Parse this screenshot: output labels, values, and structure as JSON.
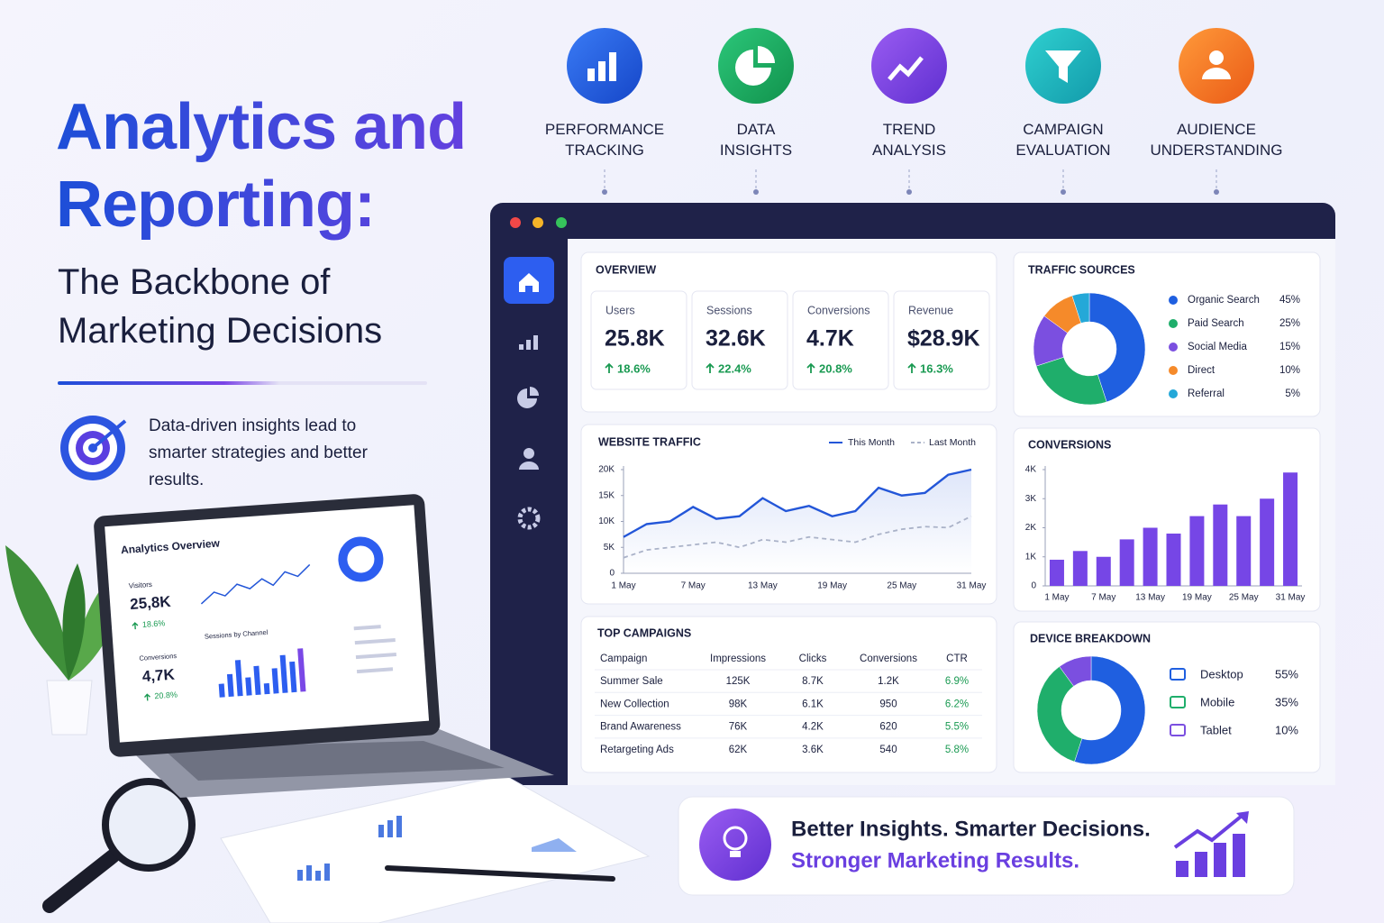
{
  "header": {
    "title": "Analytics and Reporting:",
    "subtitle": "The Backbone of Marketing Decisions",
    "tagline": "Data-driven insights lead to smarter strategies and better results."
  },
  "features": [
    "PERFORMANCE TRACKING",
    "DATA INSIGHTS",
    "TREND ANALYSIS",
    "CAMPAIGN EVALUATION",
    "AUDIENCE UNDERSTANDING"
  ],
  "laptop": {
    "title": "Analytics Overview",
    "visitors_label": "Visitors",
    "visitors": "25,8K",
    "visitors_change": "18.6%",
    "channel_label": "Sessions by Channel",
    "conversions_label": "Conversions",
    "conversions": "4,7K",
    "conversions_change": "20.8%"
  },
  "overview": {
    "title": "OVERVIEW",
    "kpis": [
      {
        "label": "Users",
        "value": "25.8K",
        "change": "18.6%"
      },
      {
        "label": "Sessions",
        "value": "32.6K",
        "change": "22.4%"
      },
      {
        "label": "Conversions",
        "value": "4.7K",
        "change": "20.8%"
      },
      {
        "label": "Revenue",
        "value": "$28.9K",
        "change": "16.3%"
      }
    ]
  },
  "table": {
    "title": "TOP CAMPAIGNS",
    "columns": [
      "Campaign",
      "Impressions",
      "Clicks",
      "Conversions",
      "CTR"
    ],
    "rows": [
      [
        "Summer Sale",
        "125K",
        "8.7K",
        "1.2K",
        "6.9%"
      ],
      [
        "New Collection",
        "98K",
        "6.1K",
        "950",
        "6.2%"
      ],
      [
        "Brand Awareness",
        "76K",
        "4.2K",
        "620",
        "5.5%"
      ],
      [
        "Retargeting Ads",
        "62K",
        "3.6K",
        "540",
        "5.8%"
      ]
    ]
  },
  "chart_data": [
    {
      "type": "pie",
      "title": "TRAFFIC SOURCES",
      "donut": true,
      "categories": [
        "Organic Search",
        "Paid Search",
        "Social Media",
        "Direct",
        "Referral"
      ],
      "values": [
        45,
        25,
        15,
        10,
        5
      ],
      "value_labels": [
        "45%",
        "25%",
        "15%",
        "10%",
        "5%"
      ],
      "colors": [
        "#1f5fe0",
        "#1fae6b",
        "#7b4fe0",
        "#f58a2a",
        "#24a8d8"
      ]
    },
    {
      "type": "line",
      "title": "WEBSITE TRAFFIC",
      "categories": [
        "1 May",
        null,
        null,
        "7 May",
        null,
        null,
        "13 May",
        null,
        null,
        "19 May",
        null,
        null,
        "25 May",
        null,
        null,
        "31 May"
      ],
      "series": [
        {
          "name": "This Month",
          "color": "#2356d8",
          "values": [
            7000,
            9500,
            10000,
            12800,
            10500,
            11000,
            14500,
            12000,
            13000,
            11000,
            12000,
            16500,
            15000,
            15500,
            19000,
            20000
          ]
        },
        {
          "name": "Last Month",
          "color": "#aab2c8",
          "dashed": true,
          "values": [
            3000,
            4500,
            5000,
            5500,
            6000,
            5000,
            6500,
            6000,
            7000,
            6500,
            6000,
            7500,
            8500,
            9000,
            8800,
            11000
          ]
        }
      ],
      "ylim": [
        0,
        20000
      ],
      "yticks": [
        0,
        {
          "value": 5000,
          "label": "5K"
        },
        {
          "value": 10000,
          "label": "10K"
        },
        {
          "value": 15000,
          "label": "15K"
        },
        {
          "value": 20000,
          "label": "20K"
        }
      ],
      "grid": false
    },
    {
      "type": "bar",
      "title": "CONVERSIONS",
      "categories": [
        "1 May",
        null,
        "7 May",
        null,
        "13 May",
        null,
        "19 May",
        null,
        "25 May",
        null,
        "31 May"
      ],
      "values": [
        900,
        1200,
        1000,
        1600,
        2000,
        1800,
        2400,
        2800,
        2400,
        3000,
        3900
      ],
      "color": "#7646e6",
      "ylim": [
        0,
        4000
      ],
      "yticks": [
        0,
        {
          "value": 1000,
          "label": "1K"
        },
        {
          "value": 2000,
          "label": "2K"
        },
        {
          "value": 3000,
          "label": "3K"
        },
        {
          "value": 4000,
          "label": "4K"
        }
      ],
      "grid": false
    },
    {
      "type": "pie",
      "title": "DEVICE BREAKDOWN",
      "donut": true,
      "categories": [
        "Desktop",
        "Mobile",
        "Tablet"
      ],
      "values": [
        55,
        35,
        10
      ],
      "value_labels": [
        "55%",
        "35%",
        "10%"
      ],
      "colors": [
        "#1f5fe0",
        "#1fae6b",
        "#7b4fe0"
      ]
    }
  ],
  "banner": {
    "line1": "Better Insights. Smarter Decisions.",
    "line2": "Stronger Marketing Results."
  }
}
